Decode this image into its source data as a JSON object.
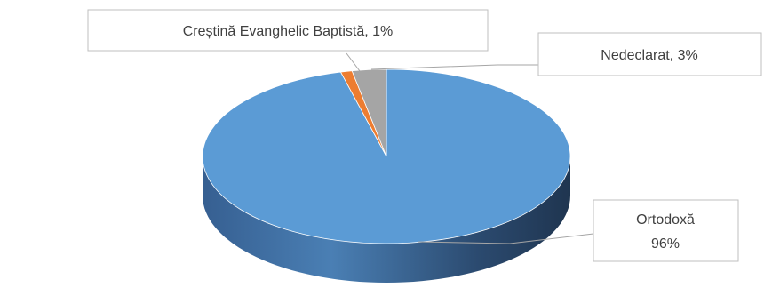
{
  "chart_data": {
    "type": "pie",
    "title": "",
    "legend": "none",
    "slices": [
      {
        "name": "Ortodoxă",
        "value": 96,
        "label_name": "Ortodoxă",
        "label_value": "96%",
        "color": "#5b9bd5",
        "side_dark": "#3a6d9a",
        "side_light": "#4a7fb1"
      },
      {
        "name": "Creștină Evanghelic Baptistă",
        "value": 1,
        "label": "Creștină Evanghelic Baptistă, 1%",
        "color": "#ed7d31",
        "side_dark": "#b25c22",
        "side_light": "#c96a2a"
      },
      {
        "name": "Nedeclarat",
        "value": 3,
        "label": "Nedeclarat, 3%",
        "color": "#a5a5a5",
        "side_dark": "#6f6f6f",
        "side_light": "#888888"
      }
    ]
  }
}
